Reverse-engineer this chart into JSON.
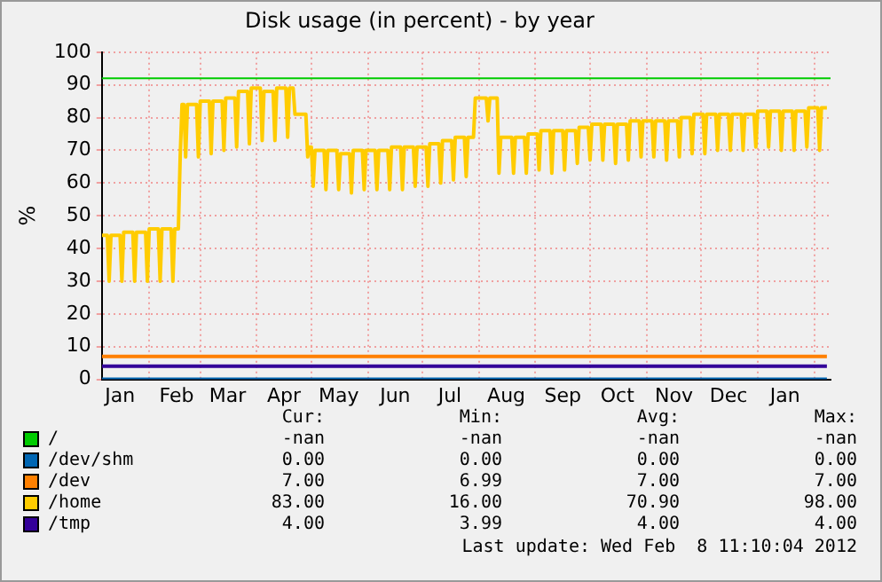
{
  "chart_data": {
    "type": "line",
    "title": "Disk usage (in percent) - by year",
    "ylabel": "%",
    "xlim": [
      "2011-01-06",
      "2012-02-10"
    ],
    "xticks": [
      {
        "value": "2011-01-16",
        "label": "Jan"
      },
      {
        "value": "2011-02-01",
        "label": null
      },
      {
        "value": "2011-02-16",
        "label": "Feb"
      },
      {
        "value": "2011-03-01",
        "label": null
      },
      {
        "value": "2011-03-16",
        "label": "Mar"
      },
      {
        "value": "2011-04-01",
        "label": null
      },
      {
        "value": "2011-04-16",
        "label": "Apr"
      },
      {
        "value": "2011-05-01",
        "label": null
      },
      {
        "value": "2011-05-16",
        "label": "May"
      },
      {
        "value": "2011-06-01",
        "label": null
      },
      {
        "value": "2011-06-16",
        "label": "Jun"
      },
      {
        "value": "2011-07-01",
        "label": null
      },
      {
        "value": "2011-07-16",
        "label": "Jul"
      },
      {
        "value": "2011-08-01",
        "label": null
      },
      {
        "value": "2011-08-16",
        "label": "Aug"
      },
      {
        "value": "2011-09-01",
        "label": null
      },
      {
        "value": "2011-09-16",
        "label": "Sep"
      },
      {
        "value": "2011-10-01",
        "label": null
      },
      {
        "value": "2011-10-16",
        "label": "Oct"
      },
      {
        "value": "2011-11-01",
        "label": null
      },
      {
        "value": "2011-11-16",
        "label": "Nov"
      },
      {
        "value": "2011-12-01",
        "label": null
      },
      {
        "value": "2011-12-16",
        "label": "Dec"
      },
      {
        "value": "2012-01-01",
        "label": null
      },
      {
        "value": "2012-01-16",
        "label": "Jan"
      },
      {
        "value": "2012-02-01",
        "label": null
      }
    ],
    "ylim": [
      0,
      100
    ],
    "yticks": [
      0,
      10,
      20,
      30,
      40,
      50,
      60,
      70,
      80,
      90,
      100
    ],
    "grid": true,
    "legend": "bottom",
    "marker": "none",
    "line_style": "solid",
    "ref_lines": [
      {
        "axis": "y",
        "value": 92,
        "color": "#00cc00"
      }
    ],
    "series": [
      {
        "name": "/",
        "color": "#00cc00",
        "values": [
          null
        ]
      },
      {
        "name": "/dev/shm",
        "color": "#0066b3",
        "x": [
          "2011-01-06",
          "2012-02-08"
        ],
        "values": [
          0,
          0
        ]
      },
      {
        "name": "/dev",
        "color": "#ff8000",
        "x": [
          "2011-01-06",
          "2012-02-08"
        ],
        "values": [
          7,
          7
        ]
      },
      {
        "name": "/home",
        "color": "#ffcc00",
        "x": [
          "2011-01-06",
          "2011-01-09",
          "2011-01-10",
          "2011-01-11",
          "2011-01-16",
          "2011-01-17",
          "2011-01-18",
          "2011-01-23",
          "2011-01-24",
          "2011-01-25",
          "2011-01-30",
          "2011-01-31",
          "2011-02-01",
          "2011-02-06",
          "2011-02-07",
          "2011-02-08",
          "2011-02-13",
          "2011-02-14",
          "2011-02-15",
          "2011-02-17",
          "2011-02-18",
          "2011-02-19",
          "2011-02-20",
          "2011-02-21",
          "2011-02-22",
          "2011-02-27",
          "2011-02-28",
          "2011-03-01",
          "2011-03-06",
          "2011-03-07",
          "2011-03-08",
          "2011-03-13",
          "2011-03-14",
          "2011-03-15",
          "2011-03-20",
          "2011-03-21",
          "2011-03-22",
          "2011-03-27",
          "2011-03-28",
          "2011-03-29",
          "2011-04-03",
          "2011-04-04",
          "2011-04-05",
          "2011-04-10",
          "2011-04-11",
          "2011-04-12",
          "2011-04-17",
          "2011-04-18",
          "2011-04-19",
          "2011-04-21",
          "2011-04-22",
          "2011-04-28",
          "2011-04-29",
          "2011-04-30",
          "2011-05-01",
          "2011-05-02",
          "2011-05-03",
          "2011-05-08",
          "2011-05-09",
          "2011-05-10",
          "2011-05-15",
          "2011-05-16",
          "2011-05-17",
          "2011-05-22",
          "2011-05-23",
          "2011-05-24",
          "2011-05-29",
          "2011-05-30",
          "2011-05-31",
          "2011-06-05",
          "2011-06-06",
          "2011-06-07",
          "2011-06-12",
          "2011-06-13",
          "2011-06-14",
          "2011-06-19",
          "2011-06-20",
          "2011-06-21",
          "2011-06-26",
          "2011-06-27",
          "2011-06-28",
          "2011-07-03",
          "2011-07-04",
          "2011-07-05",
          "2011-07-10",
          "2011-07-11",
          "2011-07-12",
          "2011-07-17",
          "2011-07-18",
          "2011-07-19",
          "2011-07-24",
          "2011-07-25",
          "2011-07-26",
          "2011-07-29",
          "2011-07-30",
          "2011-08-05",
          "2011-08-06",
          "2011-08-07",
          "2011-08-11",
          "2011-08-12",
          "2011-08-13",
          "2011-08-19",
          "2011-08-20",
          "2011-08-21",
          "2011-08-26",
          "2011-08-27",
          "2011-08-28",
          "2011-09-02",
          "2011-09-03",
          "2011-09-04",
          "2011-09-09",
          "2011-09-10",
          "2011-09-11",
          "2011-09-16",
          "2011-09-17",
          "2011-09-18",
          "2011-09-23",
          "2011-09-24",
          "2011-09-25",
          "2011-09-30",
          "2011-10-01",
          "2011-10-02",
          "2011-10-07",
          "2011-10-08",
          "2011-10-09",
          "2011-10-14",
          "2011-10-15",
          "2011-10-16",
          "2011-10-21",
          "2011-10-22",
          "2011-10-23",
          "2011-10-28",
          "2011-10-29",
          "2011-10-30",
          "2011-11-04",
          "2011-11-05",
          "2011-11-06",
          "2011-11-11",
          "2011-11-12",
          "2011-11-13",
          "2011-11-18",
          "2011-11-19",
          "2011-11-20",
          "2011-11-25",
          "2011-11-26",
          "2011-11-27",
          "2011-12-02",
          "2011-12-03",
          "2011-12-04",
          "2011-12-09",
          "2011-12-10",
          "2011-12-11",
          "2011-12-16",
          "2011-12-17",
          "2011-12-18",
          "2011-12-23",
          "2011-12-24",
          "2011-12-25",
          "2011-12-30",
          "2011-12-31",
          "2012-01-01",
          "2012-01-06",
          "2012-01-07",
          "2012-01-08",
          "2012-01-13",
          "2012-01-14",
          "2012-01-15",
          "2012-01-20",
          "2012-01-21",
          "2012-01-22",
          "2012-01-27",
          "2012-01-28",
          "2012-01-29",
          "2012-02-03",
          "2012-02-04",
          "2012-02-05",
          "2012-02-08"
        ],
        "values": [
          44,
          44,
          30,
          44,
          44,
          30,
          45,
          45,
          30,
          45,
          45,
          30,
          46,
          46,
          30,
          46,
          46,
          30,
          46,
          46,
          68,
          84,
          84,
          68,
          84,
          84,
          68,
          85,
          85,
          69,
          85,
          85,
          70,
          86,
          86,
          71,
          88,
          88,
          72,
          89,
          89,
          73,
          88,
          88,
          73,
          89,
          89,
          74,
          89,
          89,
          81,
          81,
          68,
          71,
          71,
          59,
          70,
          70,
          58,
          70,
          70,
          58,
          69,
          69,
          57,
          70,
          70,
          58,
          70,
          70,
          58,
          70,
          70,
          58,
          71,
          71,
          58,
          71,
          71,
          59,
          71,
          71,
          59,
          72,
          72,
          60,
          73,
          73,
          61,
          74,
          74,
          62,
          74,
          74,
          86,
          86,
          79,
          86,
          86,
          63,
          74,
          74,
          63,
          74,
          74,
          63,
          75,
          75,
          64,
          76,
          76,
          63,
          76,
          76,
          64,
          76,
          76,
          66,
          77,
          77,
          67,
          78,
          78,
          67,
          78,
          78,
          66,
          78,
          78,
          67,
          79,
          79,
          68,
          79,
          79,
          68,
          79,
          79,
          67,
          79,
          79,
          68,
          80,
          80,
          69,
          81,
          81,
          69,
          81,
          81,
          70,
          81,
          81,
          70,
          81,
          81,
          70,
          81,
          81,
          71,
          82,
          82,
          71,
          82,
          82,
          70,
          82,
          82,
          70,
          82,
          82,
          71,
          83,
          83,
          70,
          83,
          83
        ]
      },
      {
        "name": "/tmp",
        "color": "#330099",
        "x": [
          "2011-01-06",
          "2012-02-08"
        ],
        "values": [
          4,
          4
        ]
      }
    ],
    "annotations": [
      "Cur:",
      "Min:",
      "Avg:",
      "Max:",
      "-nan",
      "-nan",
      "-nan",
      "-nan",
      "0.00",
      "0.00",
      "0.00",
      "0.00",
      "7.00",
      "6.99",
      "7.00",
      "7.00",
      "83.00",
      "16.00",
      "70.90",
      "98.00",
      "4.00",
      "3.99",
      "4.00",
      "4.00",
      "Last update: Wed Feb  8 11:10:04 2012"
    ]
  }
}
